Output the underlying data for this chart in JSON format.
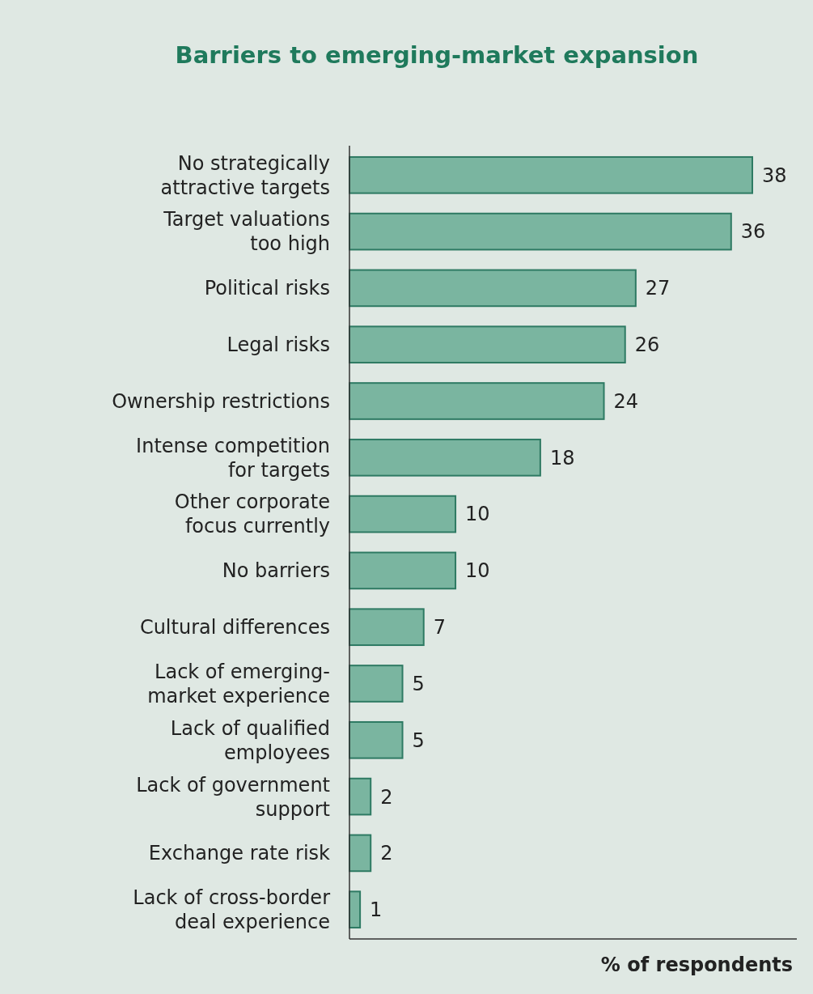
{
  "chart_data": {
    "type": "bar",
    "orientation": "horizontal",
    "title": "Barriers to emerging-market expansion",
    "xlabel": "% of respondents",
    "categories": [
      "No strategically attractive targets",
      "Target valuations too high",
      "Political risks",
      "Legal risks",
      "Ownership restrictions",
      "Intense competition for targets",
      "Other corporate focus currently",
      "No barriers",
      "Cultural differences",
      "Lack of emerging-market experience",
      "Lack of qualified employees",
      "Lack of government support",
      "Exchange rate risk",
      "Lack of cross-border deal experience"
    ],
    "values": [
      38,
      36,
      27,
      26,
      24,
      18,
      10,
      10,
      7,
      5,
      5,
      2,
      2,
      1
    ],
    "color": "#7ab5a0",
    "xlim": [
      0,
      38
    ],
    "data_labels": true,
    "tick_labels": "y"
  }
}
